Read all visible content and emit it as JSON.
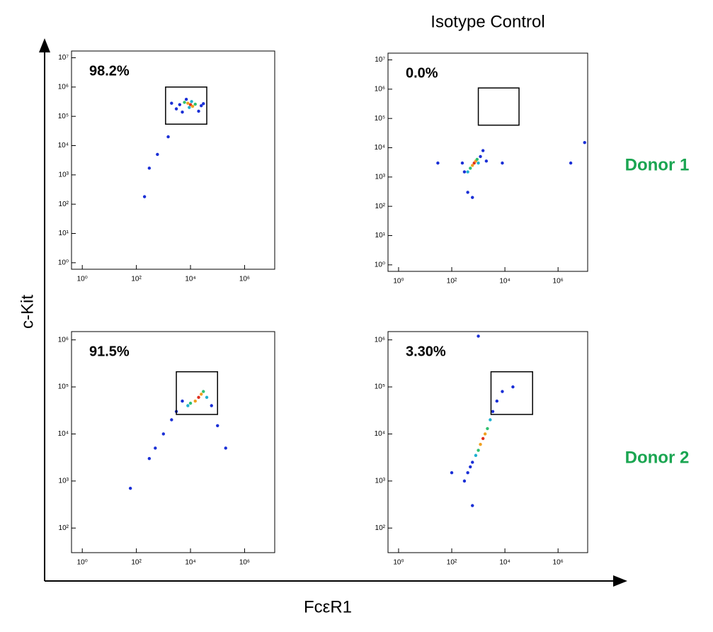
{
  "figure": {
    "column_title": "Isotype Control",
    "row_labels": [
      "Donor 1",
      "Donor 2"
    ],
    "row_label_color": "#1aa551",
    "xlabel": "FcεR1",
    "ylabel": "c-Kit"
  },
  "chart_data": [
    {
      "type": "scatter",
      "annotation": "98.2%",
      "log_x": true,
      "log_y": true,
      "xlim": [
        0.4,
        13000000
      ],
      "ylim": [
        0.6,
        17000000
      ],
      "xticks": [
        {
          "value": 1,
          "label": "10⁰"
        },
        {
          "value": 100,
          "label": "10²"
        },
        {
          "value": 10000,
          "label": "10⁴"
        },
        {
          "value": 1000000,
          "label": "10⁶"
        }
      ],
      "yticks": [
        {
          "value": 1,
          "label": "10⁰"
        },
        {
          "value": 10,
          "label": "10¹"
        },
        {
          "value": 100,
          "label": "10²"
        },
        {
          "value": 1000,
          "label": "10³"
        },
        {
          "value": 10000,
          "label": "10⁴"
        },
        {
          "value": 100000,
          "label": "10⁵"
        },
        {
          "value": 1000000,
          "label": "10⁶"
        },
        {
          "value": 10000000,
          "label": "10⁷"
        }
      ],
      "gate": {
        "x": [
          1200,
          40000
        ],
        "y": [
          54000,
          1000000
        ]
      },
      "x": [
        10000,
        8000,
        12000,
        6000,
        15000,
        9000,
        11000,
        4000,
        25000,
        3000,
        7000,
        20000,
        5000,
        30000,
        2000,
        1500,
        600,
        300,
        200
      ],
      "y": [
        250000,
        280000,
        220000,
        300000,
        260000,
        200000,
        320000,
        250000,
        230000,
        180000,
        380000,
        150000,
        140000,
        270000,
        280000,
        20000,
        5000,
        1700,
        180
      ],
      "point_colors": [
        "#e03020",
        "#f0a020",
        "#f0a020",
        "#30c070",
        "#30c070",
        "#20b0d0",
        "#20b0d0",
        "#1a2fd6",
        "#1a2fd6",
        "#1a2fd6",
        "#1a2fd6",
        "#1a2fd6",
        "#1a2fd6",
        "#1a2fd6",
        "#1a2fd6",
        "#1a2fd6",
        "#1a2fd6",
        "#1a2fd6",
        "#1a2fd6"
      ]
    },
    {
      "type": "scatter",
      "annotation": "0.0%",
      "log_x": true,
      "log_y": true,
      "xlim": [
        0.4,
        13000000
      ],
      "ylim": [
        0.6,
        17000000
      ],
      "xticks": [
        {
          "value": 1,
          "label": "10⁰"
        },
        {
          "value": 100,
          "label": "10²"
        },
        {
          "value": 10000,
          "label": "10⁴"
        },
        {
          "value": 1000000,
          "label": "10⁶"
        }
      ],
      "yticks": [
        {
          "value": 1,
          "label": "10⁰"
        },
        {
          "value": 10,
          "label": "10¹"
        },
        {
          "value": 100,
          "label": "10²"
        },
        {
          "value": 1000,
          "label": "10³"
        },
        {
          "value": 10000,
          "label": "10⁴"
        },
        {
          "value": 100000,
          "label": "10⁵"
        },
        {
          "value": 1000000,
          "label": "10⁶"
        },
        {
          "value": 10000000,
          "label": "10⁷"
        }
      ],
      "gate": {
        "x": [
          1000,
          34000
        ],
        "y": [
          59000,
          1100000
        ]
      },
      "x": [
        700,
        600,
        800,
        500,
        900,
        1000,
        400,
        1200,
        300,
        1500,
        250,
        30,
        2000,
        3000000,
        8000,
        400,
        600,
        10000000
      ],
      "y": [
        3000,
        2500,
        3500,
        2000,
        4000,
        3000,
        1500,
        5000,
        1500,
        8000,
        3000,
        3000,
        3500,
        3000,
        3000,
        300,
        200,
        15000
      ],
      "point_colors": [
        "#e03020",
        "#f0a020",
        "#f0a020",
        "#30c070",
        "#30c070",
        "#20b0d0",
        "#20b0d0",
        "#1a2fd6",
        "#1a2fd6",
        "#1a2fd6",
        "#1a2fd6",
        "#1a2fd6",
        "#1a2fd6",
        "#1a2fd6",
        "#1a2fd6",
        "#1a2fd6",
        "#1a2fd6",
        "#1a2fd6"
      ]
    },
    {
      "type": "scatter",
      "annotation": "91.5%",
      "log_x": true,
      "log_y": true,
      "xlim": [
        0.4,
        13000000
      ],
      "ylim": [
        30,
        1500000
      ],
      "xticks": [
        {
          "value": 1,
          "label": "10⁰"
        },
        {
          "value": 100,
          "label": "10²"
        },
        {
          "value": 10000,
          "label": "10⁴"
        },
        {
          "value": 1000000,
          "label": "10⁶"
        }
      ],
      "yticks": [
        {
          "value": 100,
          "label": "10²"
        },
        {
          "value": 1000,
          "label": "10³"
        },
        {
          "value": 10000,
          "label": "10⁴"
        },
        {
          "value": 100000,
          "label": "10⁵"
        },
        {
          "value": 1000000,
          "label": "10⁶"
        }
      ],
      "gate": {
        "x": [
          3000,
          100000
        ],
        "y": [
          26000,
          210000
        ]
      },
      "x": [
        20000,
        15000,
        25000,
        10000,
        30000,
        8000,
        40000,
        5000,
        60000,
        3000,
        2000,
        1000,
        500,
        300,
        60,
        100000,
        200000
      ],
      "y": [
        60000,
        50000,
        70000,
        45000,
        80000,
        40000,
        60000,
        50000,
        40000,
        30000,
        20000,
        10000,
        5000,
        3000,
        700,
        15000,
        5000
      ],
      "point_colors": [
        "#e03020",
        "#f0a020",
        "#f0a020",
        "#30c070",
        "#30c070",
        "#20b0d0",
        "#20b0d0",
        "#1a2fd6",
        "#1a2fd6",
        "#1a2fd6",
        "#1a2fd6",
        "#1a2fd6",
        "#1a2fd6",
        "#1a2fd6",
        "#1a2fd6",
        "#1a2fd6",
        "#1a2fd6"
      ]
    },
    {
      "type": "scatter",
      "annotation": "3.30%",
      "log_x": true,
      "log_y": true,
      "xlim": [
        0.4,
        13000000
      ],
      "ylim": [
        30,
        1500000
      ],
      "xticks": [
        {
          "value": 1,
          "label": "10⁰"
        },
        {
          "value": 100,
          "label": "10²"
        },
        {
          "value": 10000,
          "label": "10⁴"
        },
        {
          "value": 1000000,
          "label": "10⁶"
        }
      ],
      "yticks": [
        {
          "value": 100,
          "label": "10²"
        },
        {
          "value": 1000,
          "label": "10³"
        },
        {
          "value": 10000,
          "label": "10⁴"
        },
        {
          "value": 100000,
          "label": "10⁵"
        },
        {
          "value": 1000000,
          "label": "10⁶"
        }
      ],
      "gate": {
        "x": [
          3000,
          110000
        ],
        "y": [
          26000,
          210000
        ]
      },
      "x": [
        1500,
        1200,
        1800,
        1000,
        2200,
        800,
        2800,
        600,
        3500,
        500,
        5000,
        8000,
        400,
        300,
        100,
        600,
        1000,
        20000
      ],
      "y": [
        8000,
        6000,
        10000,
        4500,
        13000,
        3500,
        20000,
        2500,
        30000,
        2000,
        50000,
        80000,
        1500,
        1000,
        1500,
        300,
        1200000,
        100000
      ],
      "point_colors": [
        "#e03020",
        "#f0a020",
        "#f0a020",
        "#30c070",
        "#30c070",
        "#20b0d0",
        "#20b0d0",
        "#1a2fd6",
        "#1a2fd6",
        "#1a2fd6",
        "#1a2fd6",
        "#1a2fd6",
        "#1a2fd6",
        "#1a2fd6",
        "#1a2fd6",
        "#1a2fd6",
        "#1a2fd6",
        "#1a2fd6"
      ]
    }
  ]
}
